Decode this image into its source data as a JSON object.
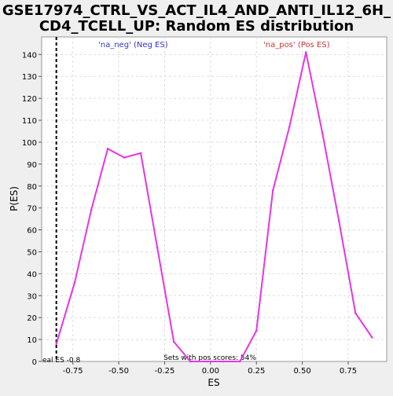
{
  "chart_data": {
    "type": "line",
    "title_line1": "GSE17974_CTRL_VS_ACT_IL4_AND_ANTI_IL12_6H_",
    "title_line2": "CD4_TCELL_UP: Random ES distribution",
    "xlabel": "ES",
    "ylabel": "P(ES)",
    "xlim": [
      -0.92,
      0.96
    ],
    "ylim": [
      0,
      148
    ],
    "x_ticks": [
      -0.75,
      -0.5,
      -0.25,
      0.0,
      0.25,
      0.5,
      0.75
    ],
    "x_tick_labels": [
      "-0.75",
      "-0.50",
      "-0.25",
      "0.00",
      "0.25",
      "0.50",
      "0.75"
    ],
    "y_ticks": [
      0,
      10,
      20,
      30,
      40,
      50,
      60,
      70,
      80,
      90,
      100,
      110,
      120,
      130,
      140
    ],
    "y_tick_labels": [
      "0",
      "10",
      "20",
      "30",
      "40",
      "50",
      "60",
      "70",
      "80",
      "90",
      "100",
      "110",
      "120",
      "130",
      "140"
    ],
    "grid": true,
    "series": [
      {
        "color": "#e535e5",
        "x": [
          -0.84,
          -0.74,
          -0.65,
          -0.56,
          -0.47,
          -0.38,
          -0.29,
          -0.2,
          -0.11,
          -0.02,
          0.07,
          0.16,
          0.25,
          0.34,
          0.43,
          0.52,
          0.61,
          0.7,
          0.79,
          0.88
        ],
        "y": [
          8,
          36,
          69,
          97,
          93,
          95,
          52,
          9,
          0,
          0,
          0,
          0,
          14,
          78,
          107,
          141,
          104,
          64,
          22,
          11
        ]
      }
    ],
    "legend_neg": {
      "text": "'na_neg' (Neg ES)",
      "color": "#3333cc"
    },
    "legend_pos": {
      "text": "'na_pos' (Pos ES)",
      "color": "#cc3333"
    },
    "real_es": {
      "x": -0.84,
      "label": "eal ES -0.8"
    },
    "annotation": "Sets with pos scores: 54%"
  }
}
